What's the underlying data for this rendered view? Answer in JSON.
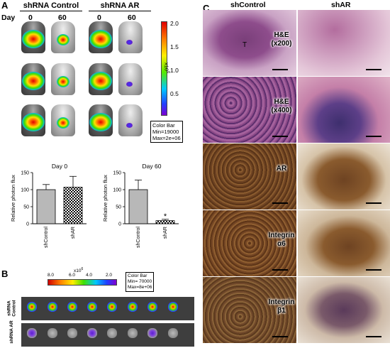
{
  "panel_a": {
    "label": "A",
    "day_label": "Day",
    "groups": [
      {
        "name": "shRNA Control",
        "days": [
          "0",
          "60"
        ]
      },
      {
        "name": "shRNA AR",
        "days": [
          "0",
          "60"
        ]
      }
    ],
    "colorbar": {
      "ticks": [
        "2.0",
        "1.5",
        "1.0",
        "0.5"
      ],
      "unit": "x10",
      "unit_exp": "6",
      "box": [
        "Color Bar",
        "Min=19000",
        "Max=2e+06"
      ]
    }
  },
  "panel_b": {
    "label": "B",
    "colorbar": {
      "ticks": [
        "8.0",
        "6.0",
        "4.0",
        "2.0"
      ],
      "unit": "x10",
      "unit_exp": "6",
      "box": [
        "Color Bar",
        "Min= 70000",
        "Max=8e+06"
      ]
    },
    "row_labels": [
      "shRNA Control",
      "shRNA AR"
    ]
  },
  "panel_c": {
    "label": "C",
    "columns": [
      "shControl",
      "shAR"
    ],
    "rows": [
      {
        "label": "H&E\n(x200)",
        "mark": "T"
      },
      {
        "label": "H&E\n(x400)",
        "mark": ""
      },
      {
        "label": "AR",
        "mark": ""
      },
      {
        "label": "Integrin\nα6",
        "mark": ""
      },
      {
        "label": "Integrin\nβ1",
        "mark": ""
      }
    ]
  },
  "chart_data": [
    {
      "type": "bar",
      "title": "Day 0",
      "ylabel": "Relative photon flux",
      "categories": [
        "shControl",
        "shAR"
      ],
      "values": [
        100,
        107
      ],
      "errors": [
        15,
        32
      ],
      "ylim": [
        0,
        150
      ],
      "yticks": [
        0,
        50,
        100,
        150
      ]
    },
    {
      "type": "bar",
      "title": "Day 60",
      "ylabel": "Relative photon flux",
      "categories": [
        "shControl",
        "shAR"
      ],
      "values": [
        100,
        9
      ],
      "errors": [
        28,
        4
      ],
      "ylim": [
        0,
        150
      ],
      "yticks": [
        0,
        50,
        100,
        150
      ],
      "annotation": "*"
    }
  ]
}
